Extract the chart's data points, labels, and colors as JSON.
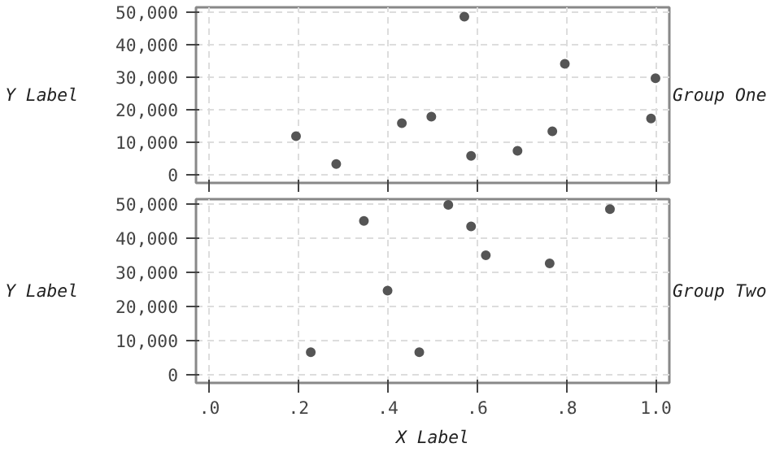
{
  "chart_data": [
    {
      "type": "scatter",
      "ylabel": "Y Label",
      "y2label": "Group One",
      "color": "#555555",
      "marker": "circle",
      "grid": true,
      "tick_labels": "y",
      "x": [
        0.194,
        0.284,
        0.431,
        0.497,
        0.571,
        0.586,
        0.69,
        0.768,
        0.796,
        0.989,
        0.999
      ],
      "values": [
        11900,
        3300,
        15900,
        17900,
        48600,
        5800,
        7400,
        13400,
        34100,
        17300,
        29700
      ],
      "xlim": [
        -0.03,
        1.03
      ],
      "ylim": [
        -2500,
        51500
      ],
      "xticks": [
        0,
        0.2,
        0.4,
        0.6,
        0.8,
        1.0
      ],
      "yticks": [
        0,
        {
          "value": 10000,
          "label": "10,000"
        },
        {
          "value": 20000,
          "label": "20,000"
        },
        {
          "value": 30000,
          "label": "30,000"
        },
        {
          "value": 40000,
          "label": "40,000"
        },
        {
          "value": 50000,
          "label": "50,000"
        }
      ]
    },
    {
      "type": "scatter",
      "ylabel": "Y Label",
      "y2label": "Group Two",
      "xlabel": "X Label",
      "color": "#555555",
      "marker": "circle",
      "grid": true,
      "x": [
        0.227,
        0.346,
        0.399,
        0.47,
        0.535,
        0.586,
        0.619,
        0.762,
        0.897
      ],
      "values": [
        6500,
        45100,
        24600,
        6500,
        49800,
        43500,
        35000,
        32600,
        48600
      ],
      "xlim": [
        -0.03,
        1.03
      ],
      "ylim": [
        -2500,
        51500
      ],
      "xticks": [
        {
          "value": 0,
          "label": ".0"
        },
        {
          "value": 0.2,
          "label": ".2"
        },
        {
          "value": 0.4,
          "label": ".4"
        },
        {
          "value": 0.6,
          "label": ".6"
        },
        {
          "value": 0.8,
          "label": ".8"
        },
        {
          "value": 1.0,
          "label": "1.0"
        }
      ],
      "yticks": [
        0,
        {
          "value": 10000,
          "label": "10,000"
        },
        {
          "value": 20000,
          "label": "20,000"
        },
        {
          "value": 30000,
          "label": "30,000"
        },
        {
          "value": 40000,
          "label": "40,000"
        },
        {
          "value": 50000,
          "label": "50,000"
        }
      ]
    }
  ]
}
